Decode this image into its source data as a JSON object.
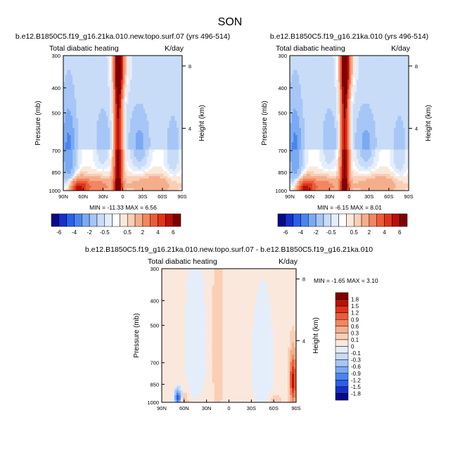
{
  "page_title": "SON",
  "chart_data": [
    {
      "type": "heatmap",
      "title": "b.e12.B1850C5.f19_g16.21ka.010.new.topo.surf.07 (yrs 496-514)",
      "left_label": "Total diabatic heating",
      "right_label": "K/day",
      "ylabel": "Pressure (mb)",
      "y2label": "Height (km)",
      "xticks": [
        "90N",
        "60N",
        "30N",
        "0",
        "30S",
        "60S",
        "90S"
      ],
      "yticks": [
        "300",
        "400",
        "500",
        "700",
        "850",
        "1000"
      ],
      "y2ticks": [
        "8",
        "4"
      ],
      "ylim": [
        1000,
        300
      ],
      "xlim": [
        "90N",
        "90S"
      ],
      "stats": "MIN = -11.33  MAX =  6.56",
      "features": [
        {
          "lat": 8,
          "p": 620,
          "value": 6.5
        },
        {
          "lat": 3,
          "p": 330,
          "value": 4
        },
        {
          "lat": -22,
          "p": 660,
          "value": -1.5
        },
        {
          "lat": 70,
          "p": 950,
          "value": 4
        },
        {
          "lat": 80,
          "p": 700,
          "value": -3
        },
        {
          "lat": -75,
          "p": 720,
          "value": -1
        }
      ]
    },
    {
      "type": "heatmap",
      "title": "b.e12.B1850C5.f19_g16.21ka.010 (yrs 496-514)",
      "left_label": "Total diabatic heating",
      "right_label": "K/day",
      "ylabel": "Pressure (mb)",
      "y2label": "Height (km)",
      "xticks": [
        "90N",
        "60N",
        "30N",
        "0",
        "30S",
        "60S",
        "90S"
      ],
      "yticks": [
        "300",
        "400",
        "500",
        "700",
        "850",
        "1000"
      ],
      "y2ticks": [
        "8",
        "4"
      ],
      "ylim": [
        1000,
        300
      ],
      "xlim": [
        "90N",
        "90S"
      ],
      "stats": "MIN =  -6.15  MAX =  8.01",
      "features": [
        {
          "lat": 8,
          "p": 620,
          "value": 6.5
        },
        {
          "lat": 3,
          "p": 330,
          "value": 4
        },
        {
          "lat": -22,
          "p": 660,
          "value": -1.5
        },
        {
          "lat": 70,
          "p": 950,
          "value": 4
        },
        {
          "lat": 80,
          "p": 700,
          "value": -3
        },
        {
          "lat": -75,
          "p": 720,
          "value": -1
        }
      ]
    },
    {
      "type": "heatmap",
      "title": "b.e12.B1850C5.f19_g16.21ka.010.new.topo.surf.07 - b.e12.B1850C5.f19_g16.21ka.010",
      "left_label": "Total diabatic heating",
      "right_label": "K/day",
      "ylabel": "Pressure (mb)",
      "y2label": "Height (km)",
      "xticks": [
        "90N",
        "60N",
        "30N",
        "0",
        "30S",
        "60S",
        "90S"
      ],
      "yticks": [
        "300",
        "400",
        "500",
        "700",
        "850",
        "1000"
      ],
      "y2ticks": [
        "8",
        "4"
      ],
      "ylim": [
        1000,
        300
      ],
      "xlim": [
        "90N",
        "90S"
      ],
      "stats": "MIN =  -1.65  MAX =  3.10",
      "features": [
        {
          "lat": 15,
          "p": 600,
          "value": 0.3
        },
        {
          "lat": -85,
          "p": 820,
          "value": 1.5
        },
        {
          "lat": 68,
          "p": 960,
          "value": -1.5
        },
        {
          "lat": 40,
          "p": 600,
          "value": -0.2
        },
        {
          "lat": -45,
          "p": 700,
          "value": -0.2
        }
      ]
    }
  ],
  "colorbars": {
    "main": {
      "labels": [
        "-6",
        "-4",
        "-2",
        "-0.5",
        "0.5",
        "2",
        "4",
        "6"
      ],
      "colors": [
        "#08088a",
        "#1530c8",
        "#2860e8",
        "#4a84f0",
        "#7aaaf2",
        "#a6c6f6",
        "#c8dcf8",
        "#e4eefb",
        "#ffffff",
        "#fbe8dc",
        "#f9cfb6",
        "#f5ae8c",
        "#f28660",
        "#ec5c36",
        "#e03418",
        "#b91008",
        "#800000"
      ]
    },
    "diff": {
      "labels": [
        "1.8",
        "1.5",
        "1.2",
        "0.9",
        "0.6",
        "0.3",
        "0.1",
        "0",
        "-0.1",
        "-0.3",
        "-0.6",
        "-0.9",
        "-1.2",
        "-1.5",
        "-1.8"
      ],
      "colors": [
        "#800000",
        "#b91008",
        "#e03418",
        "#ec5c36",
        "#f28660",
        "#f5ae8c",
        "#f9cfb6",
        "#fbe8dc",
        "#e4eefb",
        "#c8dcf8",
        "#a6c6f6",
        "#7aaaf2",
        "#4a84f0",
        "#2860e8",
        "#1530c8",
        "#08088a"
      ]
    }
  }
}
